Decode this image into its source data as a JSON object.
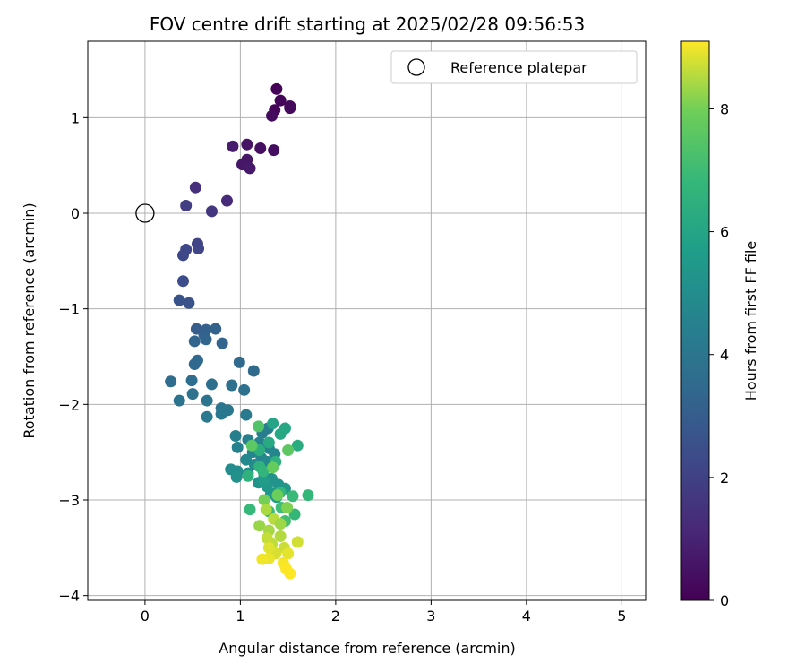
{
  "chart_data": {
    "type": "scatter",
    "title": "FOV centre drift starting at 2025/02/28 09:56:53",
    "xlabel": "Angular distance from reference (arcmin)",
    "ylabel": "Rotation from reference (arcmin)",
    "xlim": [
      -0.6,
      5.25
    ],
    "ylim": [
      -4.05,
      1.8
    ],
    "xticks": [
      0,
      1,
      2,
      3,
      4,
      5
    ],
    "yticks": [
      -4,
      -3,
      -2,
      -1,
      0,
      1
    ],
    "grid": true,
    "legend": {
      "placement": "top-right",
      "entries": [
        "Reference platepar"
      ]
    },
    "reference_point": {
      "x": 0,
      "y": 0,
      "label": "Reference platepar"
    },
    "colorbar": {
      "label": "Hours from first FF file",
      "range": [
        0,
        9.1
      ],
      "ticks": [
        0,
        2,
        4,
        6,
        8
      ],
      "colormap": "viridis"
    },
    "points": [
      {
        "x": 1.38,
        "y": 1.3,
        "c": 0.05
      },
      {
        "x": 1.42,
        "y": 1.18,
        "c": 0.1
      },
      {
        "x": 1.36,
        "y": 1.08,
        "c": 0.15
      },
      {
        "x": 1.52,
        "y": 1.12,
        "c": 0.2
      },
      {
        "x": 1.52,
        "y": 1.1,
        "c": 0.25
      },
      {
        "x": 1.33,
        "y": 1.02,
        "c": 0.3
      },
      {
        "x": 1.35,
        "y": 0.66,
        "c": 0.35
      },
      {
        "x": 1.21,
        "y": 0.68,
        "c": 0.45
      },
      {
        "x": 1.07,
        "y": 0.72,
        "c": 0.55
      },
      {
        "x": 1.07,
        "y": 0.56,
        "c": 0.6
      },
      {
        "x": 1.02,
        "y": 0.51,
        "c": 0.65
      },
      {
        "x": 1.1,
        "y": 0.47,
        "c": 0.7
      },
      {
        "x": 0.92,
        "y": 0.7,
        "c": 0.8
      },
      {
        "x": 0.86,
        "y": 0.13,
        "c": 1.2
      },
      {
        "x": 0.53,
        "y": 0.27,
        "c": 1.4
      },
      {
        "x": 0.7,
        "y": 0.02,
        "c": 1.6
      },
      {
        "x": 0.43,
        "y": 0.08,
        "c": 1.9
      },
      {
        "x": 0.55,
        "y": -0.32,
        "c": 2.1
      },
      {
        "x": 0.56,
        "y": -0.37,
        "c": 2.15
      },
      {
        "x": 0.43,
        "y": -0.38,
        "c": 2.2
      },
      {
        "x": 0.4,
        "y": -0.44,
        "c": 2.25
      },
      {
        "x": 0.4,
        "y": -0.71,
        "c": 2.4
      },
      {
        "x": 0.36,
        "y": -0.91,
        "c": 2.6
      },
      {
        "x": 0.46,
        "y": -0.94,
        "c": 2.65
      },
      {
        "x": 0.54,
        "y": -1.21,
        "c": 3.0
      },
      {
        "x": 0.64,
        "y": -1.22,
        "c": 3.1
      },
      {
        "x": 0.62,
        "y": -1.27,
        "c": 3.15
      },
      {
        "x": 0.74,
        "y": -1.21,
        "c": 3.2
      },
      {
        "x": 0.52,
        "y": -1.34,
        "c": 3.25
      },
      {
        "x": 0.64,
        "y": -1.32,
        "c": 3.3
      },
      {
        "x": 0.81,
        "y": -1.36,
        "c": 3.35
      },
      {
        "x": 0.55,
        "y": -1.54,
        "c": 3.4
      },
      {
        "x": 0.52,
        "y": -1.58,
        "c": 3.45
      },
      {
        "x": 0.99,
        "y": -1.56,
        "c": 3.5
      },
      {
        "x": 1.14,
        "y": -1.65,
        "c": 3.55
      },
      {
        "x": 0.27,
        "y": -1.76,
        "c": 3.6
      },
      {
        "x": 0.49,
        "y": -1.75,
        "c": 3.65
      },
      {
        "x": 0.7,
        "y": -1.79,
        "c": 3.7
      },
      {
        "x": 0.91,
        "y": -1.8,
        "c": 3.75
      },
      {
        "x": 1.04,
        "y": -1.85,
        "c": 3.8
      },
      {
        "x": 0.5,
        "y": -1.89,
        "c": 3.85
      },
      {
        "x": 0.36,
        "y": -1.96,
        "c": 3.9
      },
      {
        "x": 0.65,
        "y": -1.96,
        "c": 3.95
      },
      {
        "x": 0.8,
        "y": -2.04,
        "c": 4.0
      },
      {
        "x": 0.87,
        "y": -2.06,
        "c": 4.05
      },
      {
        "x": 0.8,
        "y": -2.1,
        "c": 4.1
      },
      {
        "x": 0.65,
        "y": -2.13,
        "c": 4.15
      },
      {
        "x": 1.06,
        "y": -2.11,
        "c": 4.2
      },
      {
        "x": 1.23,
        "y": -2.3,
        "c": 4.3
      },
      {
        "x": 1.29,
        "y": -2.25,
        "c": 4.35
      },
      {
        "x": 0.95,
        "y": -2.33,
        "c": 4.4
      },
      {
        "x": 1.08,
        "y": -2.37,
        "c": 4.45
      },
      {
        "x": 0.97,
        "y": -2.45,
        "c": 4.5
      },
      {
        "x": 1.2,
        "y": -2.4,
        "c": 4.55
      },
      {
        "x": 1.3,
        "y": -2.46,
        "c": 4.6
      },
      {
        "x": 1.13,
        "y": -2.5,
        "c": 4.65
      },
      {
        "x": 1.36,
        "y": -2.52,
        "c": 4.7
      },
      {
        "x": 1.22,
        "y": -2.56,
        "c": 4.75
      },
      {
        "x": 1.06,
        "y": -2.58,
        "c": 4.8
      },
      {
        "x": 1.28,
        "y": -2.6,
        "c": 4.85
      },
      {
        "x": 1.15,
        "y": -2.63,
        "c": 4.9
      },
      {
        "x": 0.9,
        "y": -2.68,
        "c": 4.95
      },
      {
        "x": 0.97,
        "y": -2.7,
        "c": 5.0
      },
      {
        "x": 1.08,
        "y": -2.72,
        "c": 5.05
      },
      {
        "x": 1.25,
        "y": -2.75,
        "c": 5.1
      },
      {
        "x": 0.96,
        "y": -2.76,
        "c": 5.15
      },
      {
        "x": 1.33,
        "y": -2.78,
        "c": 5.2
      },
      {
        "x": 1.19,
        "y": -2.82,
        "c": 5.25
      },
      {
        "x": 1.4,
        "y": -2.84,
        "c": 5.3
      },
      {
        "x": 1.28,
        "y": -2.86,
        "c": 5.35
      },
      {
        "x": 1.47,
        "y": -2.88,
        "c": 5.4
      },
      {
        "x": 1.32,
        "y": -2.93,
        "c": 5.45
      },
      {
        "x": 1.38,
        "y": -2.97,
        "c": 5.5
      },
      {
        "x": 1.25,
        "y": -2.8,
        "c": 5.6
      },
      {
        "x": 1.34,
        "y": -2.2,
        "c": 6.0
      },
      {
        "x": 1.47,
        "y": -2.25,
        "c": 6.05
      },
      {
        "x": 1.42,
        "y": -2.31,
        "c": 6.1
      },
      {
        "x": 1.6,
        "y": -2.43,
        "c": 6.3
      },
      {
        "x": 1.3,
        "y": -2.4,
        "c": 6.2
      },
      {
        "x": 1.2,
        "y": -2.48,
        "c": 6.4
      },
      {
        "x": 1.37,
        "y": -2.6,
        "c": 6.5
      },
      {
        "x": 1.2,
        "y": -2.65,
        "c": 6.55
      },
      {
        "x": 1.08,
        "y": -2.75,
        "c": 6.6
      },
      {
        "x": 1.24,
        "y": -2.7,
        "c": 6.7
      },
      {
        "x": 1.42,
        "y": -2.92,
        "c": 6.75
      },
      {
        "x": 1.55,
        "y": -2.96,
        "c": 6.9
      },
      {
        "x": 1.71,
        "y": -2.95,
        "c": 6.8
      },
      {
        "x": 1.1,
        "y": -3.1,
        "c": 6.85
      },
      {
        "x": 1.3,
        "y": -3.12,
        "c": 6.95
      },
      {
        "x": 1.43,
        "y": -3.08,
        "c": 7.0
      },
      {
        "x": 1.57,
        "y": -3.15,
        "c": 6.8
      },
      {
        "x": 1.47,
        "y": -3.22,
        "c": 7.1
      },
      {
        "x": 1.19,
        "y": -2.23,
        "c": 7.4
      },
      {
        "x": 1.5,
        "y": -2.48,
        "c": 7.6
      },
      {
        "x": 1.34,
        "y": -2.66,
        "c": 7.8
      },
      {
        "x": 1.12,
        "y": -2.43,
        "c": 7.6
      },
      {
        "x": 1.39,
        "y": -2.95,
        "c": 7.9
      },
      {
        "x": 1.25,
        "y": -3.0,
        "c": 8.0
      },
      {
        "x": 1.49,
        "y": -3.08,
        "c": 8.1
      },
      {
        "x": 1.2,
        "y": -3.27,
        "c": 8.3
      },
      {
        "x": 1.3,
        "y": -3.32,
        "c": 8.4
      },
      {
        "x": 1.42,
        "y": -3.38,
        "c": 8.5
      },
      {
        "x": 1.33,
        "y": -3.46,
        "c": 8.6
      },
      {
        "x": 1.46,
        "y": -3.5,
        "c": 8.7
      },
      {
        "x": 1.37,
        "y": -3.56,
        "c": 8.8
      },
      {
        "x": 1.5,
        "y": -3.56,
        "c": 8.9
      },
      {
        "x": 1.3,
        "y": -3.61,
        "c": 8.95
      },
      {
        "x": 1.23,
        "y": -3.62,
        "c": 9.0
      },
      {
        "x": 1.45,
        "y": -3.66,
        "c": 9.05
      },
      {
        "x": 1.48,
        "y": -3.72,
        "c": 9.1
      },
      {
        "x": 1.52,
        "y": -3.77,
        "c": 9.1
      },
      {
        "x": 1.6,
        "y": -3.44,
        "c": 8.75
      },
      {
        "x": 1.28,
        "y": -3.4,
        "c": 8.65
      },
      {
        "x": 1.35,
        "y": -3.2,
        "c": 8.55
      },
      {
        "x": 1.27,
        "y": -3.1,
        "c": 8.45
      },
      {
        "x": 1.42,
        "y": -3.25,
        "c": 8.35
      },
      {
        "x": 1.3,
        "y": -3.5,
        "c": 8.85
      }
    ]
  }
}
